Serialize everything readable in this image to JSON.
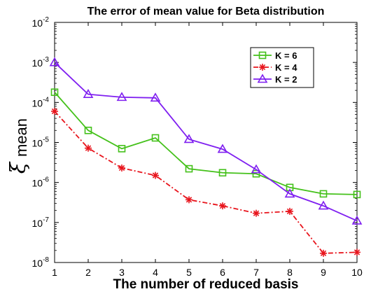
{
  "chart_data": {
    "type": "line",
    "title": "The error of mean value for Beta distribution",
    "xlabel": "The number of reduced basis",
    "ylabel_symbol": "ξ",
    "ylabel_sub": "mean",
    "x": [
      1,
      2,
      3,
      4,
      5,
      6,
      7,
      8,
      9,
      10
    ],
    "xlim": [
      1,
      10
    ],
    "ylim": [
      1e-08,
      0.01
    ],
    "yscale": "log",
    "x_ticks": [
      "1",
      "2",
      "3",
      "4",
      "5",
      "6",
      "7",
      "8",
      "9",
      "10"
    ],
    "y_ticks": [
      {
        "value": 1e-08,
        "base": "10",
        "exp": "-8"
      },
      {
        "value": 1e-07,
        "base": "10",
        "exp": "-7"
      },
      {
        "value": 1e-06,
        "base": "10",
        "exp": "-6"
      },
      {
        "value": 1e-05,
        "base": "10",
        "exp": "-5"
      },
      {
        "value": 0.0001,
        "base": "10",
        "exp": "-4"
      },
      {
        "value": 0.001,
        "base": "10",
        "exp": "-3"
      },
      {
        "value": 0.01,
        "base": "10",
        "exp": "-2"
      }
    ],
    "grid": false,
    "legend_position": "top-right",
    "series": [
      {
        "name": "K = 6",
        "color": "#44c11a",
        "marker": "square",
        "dash": "solid",
        "values": [
          0.00018,
          2e-05,
          7e-06,
          1.3e-05,
          2.2e-06,
          1.75e-06,
          1.65e-06,
          7.5e-07,
          5.2e-07,
          5e-07
        ]
      },
      {
        "name": "K = 4",
        "color": "#e8141c",
        "marker": "star",
        "dash": "dashdot",
        "values": [
          6e-05,
          7.2e-06,
          2.3e-06,
          1.5e-06,
          3.7e-07,
          2.6e-07,
          1.7e-07,
          1.9e-07,
          1.7e-08,
          1.8e-08
        ]
      },
      {
        "name": "K = 2",
        "color": "#7f1ff0",
        "marker": "triangle",
        "dash": "solid",
        "values": [
          0.001,
          0.00016,
          0.000135,
          0.00013,
          1.2e-05,
          6.8e-06,
          2.1e-06,
          5.2e-07,
          2.6e-07,
          1.1e-07
        ]
      }
    ]
  }
}
